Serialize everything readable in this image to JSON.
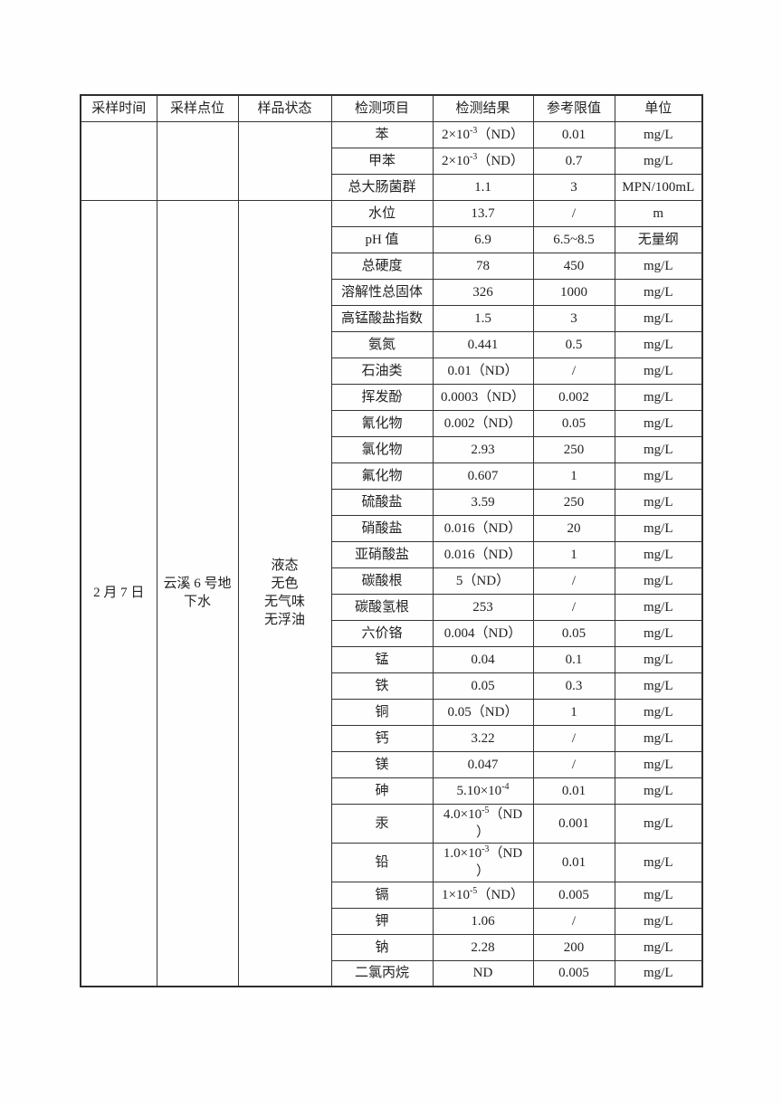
{
  "colors": {
    "border": "#343434",
    "text": "#222222",
    "background": "#fefefe"
  },
  "table": {
    "headers": [
      "采样时间",
      "采样点位",
      "样品状态",
      "检测项目",
      "检测结果",
      "参考限值",
      "单位"
    ],
    "group1": {
      "rows": [
        {
          "item": "苯",
          "result": {
            "pre": "2×10",
            "sup": "-3",
            "post": "（ND）"
          },
          "limit": "0.01",
          "unit": "mg/L"
        },
        {
          "item": "甲苯",
          "result": {
            "pre": "2×10",
            "sup": "-3",
            "post": "（ND）"
          },
          "limit": "0.7",
          "unit": "mg/L"
        },
        {
          "item": "总大肠菌群",
          "result": {
            "pre": "1.1"
          },
          "limit": "3",
          "unit": "MPN/100mL"
        }
      ]
    },
    "group2": {
      "date": "2 月 7 日",
      "location": "云溪 6 号地\n下水",
      "state": "液态\n无色\n无气味\n无浮油",
      "rows": [
        {
          "item": "水位",
          "result": {
            "pre": "13.7"
          },
          "limit": "/",
          "unit": "m"
        },
        {
          "item": "pH 值",
          "result": {
            "pre": "6.9"
          },
          "limit": "6.5~8.5",
          "unit": "无量纲"
        },
        {
          "item": "总硬度",
          "result": {
            "pre": "78"
          },
          "limit": "450",
          "unit": "mg/L"
        },
        {
          "item": "溶解性总固体",
          "result": {
            "pre": "326"
          },
          "limit": "1000",
          "unit": "mg/L"
        },
        {
          "item": "高锰酸盐指数",
          "result": {
            "pre": "1.5"
          },
          "limit": "3",
          "unit": "mg/L"
        },
        {
          "item": "氨氮",
          "result": {
            "pre": "0.441"
          },
          "limit": "0.5",
          "unit": "mg/L"
        },
        {
          "item": "石油类",
          "result": {
            "pre": "0.01（ND）"
          },
          "limit": "/",
          "unit": "mg/L"
        },
        {
          "item": "挥发酚",
          "result": {
            "pre": "0.0003（ND）"
          },
          "limit": "0.002",
          "unit": "mg/L"
        },
        {
          "item": "氰化物",
          "result": {
            "pre": "0.002（ND）"
          },
          "limit": "0.05",
          "unit": "mg/L"
        },
        {
          "item": "氯化物",
          "result": {
            "pre": "2.93"
          },
          "limit": "250",
          "unit": "mg/L"
        },
        {
          "item": "氟化物",
          "result": {
            "pre": "0.607"
          },
          "limit": "1",
          "unit": "mg/L"
        },
        {
          "item": "硫酸盐",
          "result": {
            "pre": "3.59"
          },
          "limit": "250",
          "unit": "mg/L"
        },
        {
          "item": "硝酸盐",
          "result": {
            "pre": "0.016（ND）"
          },
          "limit": "20",
          "unit": "mg/L"
        },
        {
          "item": "亚硝酸盐",
          "result": {
            "pre": "0.016（ND）"
          },
          "limit": "1",
          "unit": "mg/L"
        },
        {
          "item": "碳酸根",
          "result": {
            "pre": "5（ND）"
          },
          "limit": "/",
          "unit": "mg/L"
        },
        {
          "item": "碳酸氢根",
          "result": {
            "pre": "253"
          },
          "limit": "/",
          "unit": "mg/L"
        },
        {
          "item": "六价铬",
          "result": {
            "pre": "0.004（ND）"
          },
          "limit": "0.05",
          "unit": "mg/L"
        },
        {
          "item": "锰",
          "result": {
            "pre": "0.04"
          },
          "limit": "0.1",
          "unit": "mg/L"
        },
        {
          "item": "铁",
          "result": {
            "pre": "0.05"
          },
          "limit": "0.3",
          "unit": "mg/L"
        },
        {
          "item": "铜",
          "result": {
            "pre": "0.05（ND）"
          },
          "limit": "1",
          "unit": "mg/L"
        },
        {
          "item": "钙",
          "result": {
            "pre": "3.22"
          },
          "limit": "/",
          "unit": "mg/L"
        },
        {
          "item": "镁",
          "result": {
            "pre": "0.047"
          },
          "limit": "/",
          "unit": "mg/L"
        },
        {
          "item": "砷",
          "result": {
            "pre": "5.10×10",
            "sup": "-4"
          },
          "limit": "0.01",
          "unit": "mg/L"
        },
        {
          "item": "汞",
          "result": {
            "pre": "4.0×10",
            "sup": "-5",
            "post": "（ND",
            "line2": "）"
          },
          "limit": "0.001",
          "unit": "mg/L"
        },
        {
          "item": "铅",
          "result": {
            "pre": "1.0×10",
            "sup": "-3",
            "post": "（ND",
            "line2": "）"
          },
          "limit": "0.01",
          "unit": "mg/L"
        },
        {
          "item": "镉",
          "result": {
            "pre": "1×10",
            "sup": "-5",
            "post": "（ND）"
          },
          "limit": "0.005",
          "unit": "mg/L"
        },
        {
          "item": "钾",
          "result": {
            "pre": "1.06"
          },
          "limit": "/",
          "unit": "mg/L"
        },
        {
          "item": "钠",
          "result": {
            "pre": "2.28"
          },
          "limit": "200",
          "unit": "mg/L"
        },
        {
          "item": "二氯丙烷",
          "result": {
            "pre": "ND"
          },
          "limit": "0.005",
          "unit": "mg/L"
        }
      ]
    }
  }
}
